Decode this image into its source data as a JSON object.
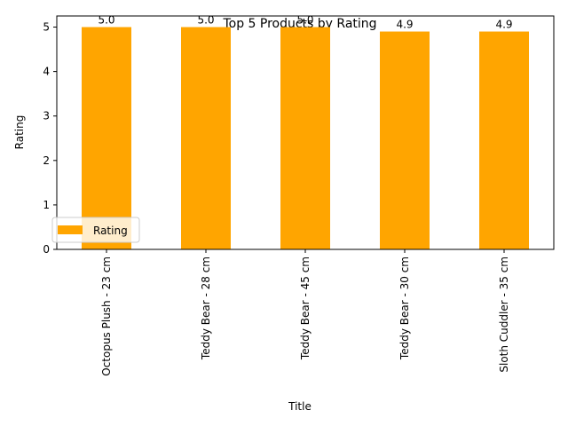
{
  "chart_data": {
    "type": "bar",
    "title": "Top 5 Products by Rating",
    "xlabel": "Title",
    "ylabel": "Rating",
    "categories": [
      "Octopus Plush - 23 cm",
      "Teddy Bear - 28 cm",
      "Teddy Bear - 45 cm",
      "Teddy Bear - 30 cm",
      "Sloth Cuddler - 35 cm"
    ],
    "series": [
      {
        "name": "Rating",
        "values": [
          5.0,
          5.0,
          5.0,
          4.9,
          4.9
        ],
        "data_labels": [
          "5.0",
          "5.0",
          "5.0",
          "4.9",
          "4.9"
        ],
        "color": "#ffa500"
      }
    ],
    "ylim": [
      0,
      5.25
    ],
    "yticks": [
      0,
      1,
      2,
      3,
      4,
      5
    ],
    "grid": false,
    "legend_position": "lower-left"
  }
}
